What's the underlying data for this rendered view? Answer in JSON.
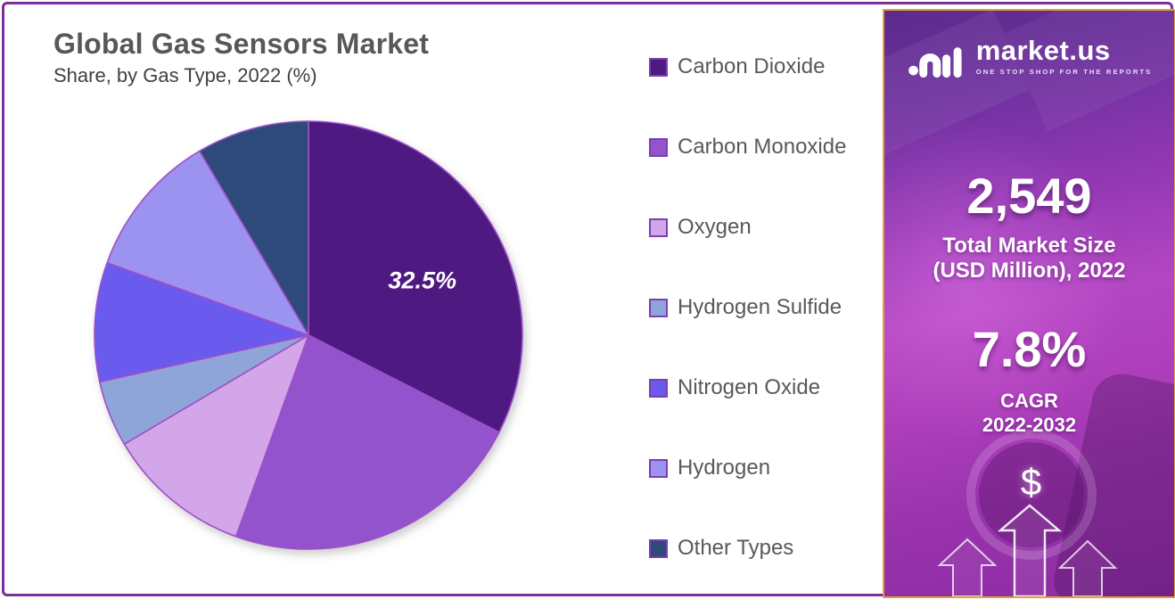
{
  "frame": {
    "border_color": "#7C2F96",
    "background": "#FFFFFF"
  },
  "header": {
    "title": "Global Gas Sensors Market",
    "subtitle": "Share, by Gas Type, 2022 (%)"
  },
  "chart_data": {
    "type": "pie",
    "title": "Global Gas Sensors Market",
    "subtitle": "Share, by Gas Type, 2022 (%)",
    "start_angle_deg": 0,
    "direction": "clockwise",
    "legend_position": "right",
    "slice_border_color": "#A04FC8",
    "pct_label_color": "#FFFFFF",
    "slices": [
      {
        "label": "Carbon Dioxide",
        "value": 32.5,
        "color": "#4E1A82",
        "pct_label": "32.5%"
      },
      {
        "label": "Carbon Monoxide",
        "value": 23.0,
        "color": "#9353CD"
      },
      {
        "label": "Oxygen",
        "value": 11.0,
        "color": "#D3A6E9"
      },
      {
        "label": "Hydrogen Sulfide",
        "value": 5.0,
        "color": "#8FA5DA"
      },
      {
        "label": "Nitrogen Oxide",
        "value": 9.0,
        "color": "#6A5AEE"
      },
      {
        "label": "Hydrogen",
        "value": 11.0,
        "color": "#9C92F0"
      },
      {
        "label": "Other Types",
        "value": 8.5,
        "color": "#2E4A7B"
      }
    ]
  },
  "legend": {
    "swatch_border_color": "#7A3FB5",
    "text_color": "#58595B"
  },
  "sidebar": {
    "border_color": "#E2A13C",
    "logo": {
      "icon": "market-us-logo-mark",
      "brand": "market.us",
      "tagline": "ONE STOP SHOP FOR THE REPORTS"
    },
    "market_size": {
      "value": "2,549",
      "label_line1": "Total Market Size",
      "label_line2": "(USD Million), 2022"
    },
    "cagr": {
      "value": "7.8%",
      "label_line1": "CAGR",
      "label_line2": "2022-2032"
    },
    "icons": {
      "dollar": "$",
      "arrows": "growth-arrows"
    }
  }
}
